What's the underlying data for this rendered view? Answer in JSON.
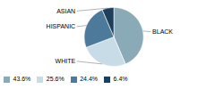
{
  "chart_data": {
    "type": "pie",
    "categories": [
      "BLACK",
      "WHITE",
      "HISPANIC",
      "ASIAN"
    ],
    "values": [
      43.6,
      25.6,
      24.4,
      6.4
    ],
    "value_labels": [
      "43.6%",
      "25.6%",
      "24.4%",
      "6.4%"
    ],
    "colors": [
      "#8aaab8",
      "#c8dce8",
      "#4d7a9a",
      "#1e3f5c"
    ],
    "legend": "bottom"
  }
}
